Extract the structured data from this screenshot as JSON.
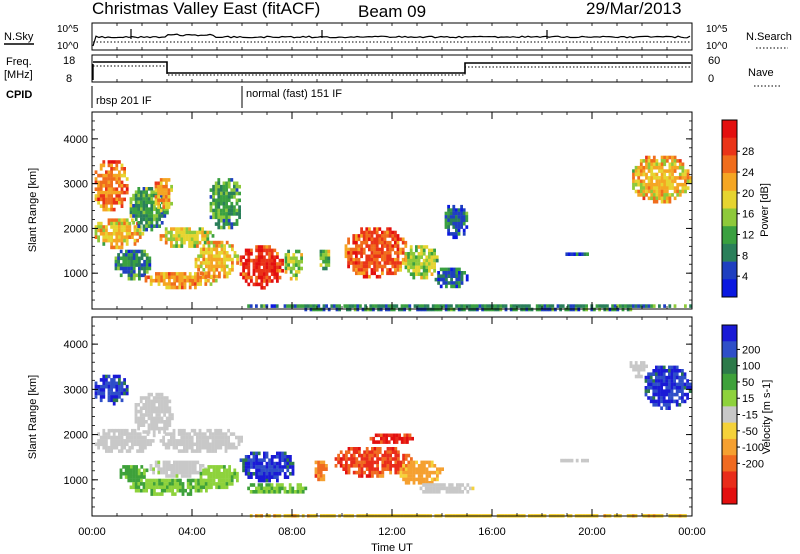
{
  "header": {
    "station": "Christmas Valley East (fitACF)",
    "beam": "Beam 09",
    "date": "29/Mar/2013"
  },
  "panels": {
    "nsky_label": "N.Sky",
    "nsearch_label": "N.Search",
    "noise_tick_top": "10^5",
    "noise_tick_bottom": "10^0",
    "freq_label": "Freq.",
    "freq_unit": "[MHz]",
    "freq_ticks": [
      "18",
      "8"
    ],
    "nave_label": "Nave",
    "nave_ticks": [
      "60",
      "0"
    ],
    "cpid_label": "CPID",
    "cpid_segments": [
      {
        "label": "rbsp 201 IF",
        "start_h": 0,
        "end_h": 6
      },
      {
        "label": "normal (fast) 151 IF",
        "start_h": 6,
        "end_h": 24
      }
    ]
  },
  "chart_data": [
    {
      "type": "heatmap",
      "name": "power",
      "ylabel": "Slant Range [km]",
      "xlabel": "Time UT",
      "xlim": [
        0,
        24
      ],
      "ylim": [
        200,
        4600
      ],
      "x_ticks": [
        "00:00",
        "04:00",
        "08:00",
        "12:00",
        "16:00",
        "20:00",
        "00:00"
      ],
      "y_ticks": [
        1000,
        2000,
        3000,
        4000
      ],
      "colorbar": {
        "label": "Power [dB]",
        "ticks": [
          "4",
          "8",
          "12",
          "16",
          "20",
          "24",
          "28"
        ],
        "colors": [
          "#0a18e0",
          "#1f3fc0",
          "#2a7f5a",
          "#3aa040",
          "#8ec93a",
          "#e6d430",
          "#f5a623",
          "#f06d1c",
          "#ea3418",
          "#e30f0f"
        ]
      },
      "regions": [
        {
          "t0": 0.0,
          "t1": 1.4,
          "r0": 2400,
          "r1": 3600,
          "value": 22
        },
        {
          "t0": 0.0,
          "t1": 2.0,
          "r0": 1600,
          "r1": 2300,
          "value": 18
        },
        {
          "t0": 1.4,
          "t1": 3.0,
          "r0": 2000,
          "r1": 3000,
          "value": 10
        },
        {
          "t0": 2.4,
          "t1": 3.2,
          "r0": 2400,
          "r1": 3200,
          "value": 20
        },
        {
          "t0": 0.8,
          "t1": 2.4,
          "r0": 900,
          "r1": 1600,
          "value": 8
        },
        {
          "t0": 2.0,
          "t1": 5.0,
          "r0": 700,
          "r1": 1100,
          "value": 20
        },
        {
          "t0": 2.6,
          "t1": 4.8,
          "r0": 1600,
          "r1": 2100,
          "value": 16
        },
        {
          "t0": 4.6,
          "t1": 6.0,
          "r0": 2000,
          "r1": 3200,
          "value": 10
        },
        {
          "t0": 4.0,
          "t1": 5.8,
          "r0": 900,
          "r1": 1800,
          "value": 18
        },
        {
          "t0": 5.8,
          "t1": 7.6,
          "r0": 700,
          "r1": 1700,
          "value": 26
        },
        {
          "t0": 7.6,
          "t1": 8.4,
          "r0": 900,
          "r1": 1600,
          "value": 14
        },
        {
          "t0": 9.0,
          "t1": 9.5,
          "r0": 1100,
          "r1": 1600,
          "value": 12
        },
        {
          "t0": 10.0,
          "t1": 12.6,
          "r0": 900,
          "r1": 2100,
          "value": 24
        },
        {
          "t0": 12.4,
          "t1": 13.8,
          "r0": 900,
          "r1": 1700,
          "value": 14
        },
        {
          "t0": 13.6,
          "t1": 15.0,
          "r0": 700,
          "r1": 1200,
          "value": 6
        },
        {
          "t0": 14.0,
          "t1": 15.0,
          "r0": 1800,
          "r1": 2600,
          "value": 6
        },
        {
          "t0": 18.0,
          "t1": 20.5,
          "r0": 1460,
          "r1": 1540,
          "value": 6
        },
        {
          "t0": 21.5,
          "t1": 23.9,
          "r0": 2600,
          "r1": 3700,
          "value": 18
        },
        {
          "t0": 6.0,
          "t1": 24.0,
          "r0": 200,
          "r1": 380,
          "value": 8
        }
      ]
    },
    {
      "type": "heatmap",
      "name": "velocity",
      "ylabel": "Slant Range [km]",
      "xlabel": "Time UT",
      "xlim": [
        0,
        24
      ],
      "ylim": [
        200,
        4600
      ],
      "x_ticks": [
        "00:00",
        "04:00",
        "08:00",
        "12:00",
        "16:00",
        "20:00",
        "00:00"
      ],
      "y_ticks": [
        1000,
        2000,
        3000,
        4000
      ],
      "colorbar": {
        "label": "Velocity [m s-1]",
        "ticks": [
          "200",
          "100",
          "50",
          "15",
          "-15",
          "-50",
          "-100",
          "-200"
        ],
        "colors": [
          "#1a1ad6",
          "#2f4fc8",
          "#2d7a4a",
          "#3ea13a",
          "#8ed23c",
          "#c8c8c8",
          "#f5d23a",
          "#f5a030",
          "#f06a20",
          "#e92c1a",
          "#e30f0f"
        ]
      },
      "regions": [
        {
          "t0": 0.0,
          "t1": 1.4,
          "r0": 2700,
          "r1": 3400,
          "value": 200
        },
        {
          "t0": 0.0,
          "t1": 2.4,
          "r0": 1600,
          "r1": 2200,
          "value": 0
        },
        {
          "t0": 1.6,
          "t1": 3.2,
          "r0": 2000,
          "r1": 3000,
          "value": 0
        },
        {
          "t0": 1.0,
          "t1": 2.2,
          "r0": 1000,
          "r1": 1400,
          "value": 60
        },
        {
          "t0": 1.4,
          "t1": 4.8,
          "r0": 700,
          "r1": 1100,
          "value": 50
        },
        {
          "t0": 2.2,
          "t1": 4.6,
          "r0": 1100,
          "r1": 1500,
          "value": 5
        },
        {
          "t0": 2.6,
          "t1": 6.0,
          "r0": 1600,
          "r1": 2200,
          "value": 0
        },
        {
          "t0": 4.2,
          "t1": 5.8,
          "r0": 800,
          "r1": 1400,
          "value": 40
        },
        {
          "t0": 5.8,
          "t1": 8.2,
          "r0": 1000,
          "r1": 1700,
          "value": 200
        },
        {
          "t0": 6.0,
          "t1": 8.6,
          "r0": 700,
          "r1": 1000,
          "value": 50
        },
        {
          "t0": 8.8,
          "t1": 9.4,
          "r0": 1000,
          "r1": 1500,
          "value": -120
        },
        {
          "t0": 9.6,
          "t1": 12.8,
          "r0": 1100,
          "r1": 1800,
          "value": -160
        },
        {
          "t0": 11.0,
          "t1": 12.8,
          "r0": 1800,
          "r1": 2100,
          "value": -200
        },
        {
          "t0": 12.2,
          "t1": 14.0,
          "r0": 900,
          "r1": 1500,
          "value": -60
        },
        {
          "t0": 13.0,
          "t1": 15.2,
          "r0": 700,
          "r1": 1000,
          "value": 0
        },
        {
          "t0": 18.0,
          "t1": 20.5,
          "r0": 1460,
          "r1": 1540,
          "value": 0
        },
        {
          "t0": 21.4,
          "t1": 22.2,
          "r0": 3300,
          "r1": 3700,
          "value": 0
        },
        {
          "t0": 22.0,
          "t1": 23.9,
          "r0": 2600,
          "r1": 3600,
          "value": 200
        },
        {
          "t0": 6.0,
          "t1": 24.0,
          "r0": 200,
          "r1": 320,
          "value": -40
        }
      ]
    }
  ]
}
